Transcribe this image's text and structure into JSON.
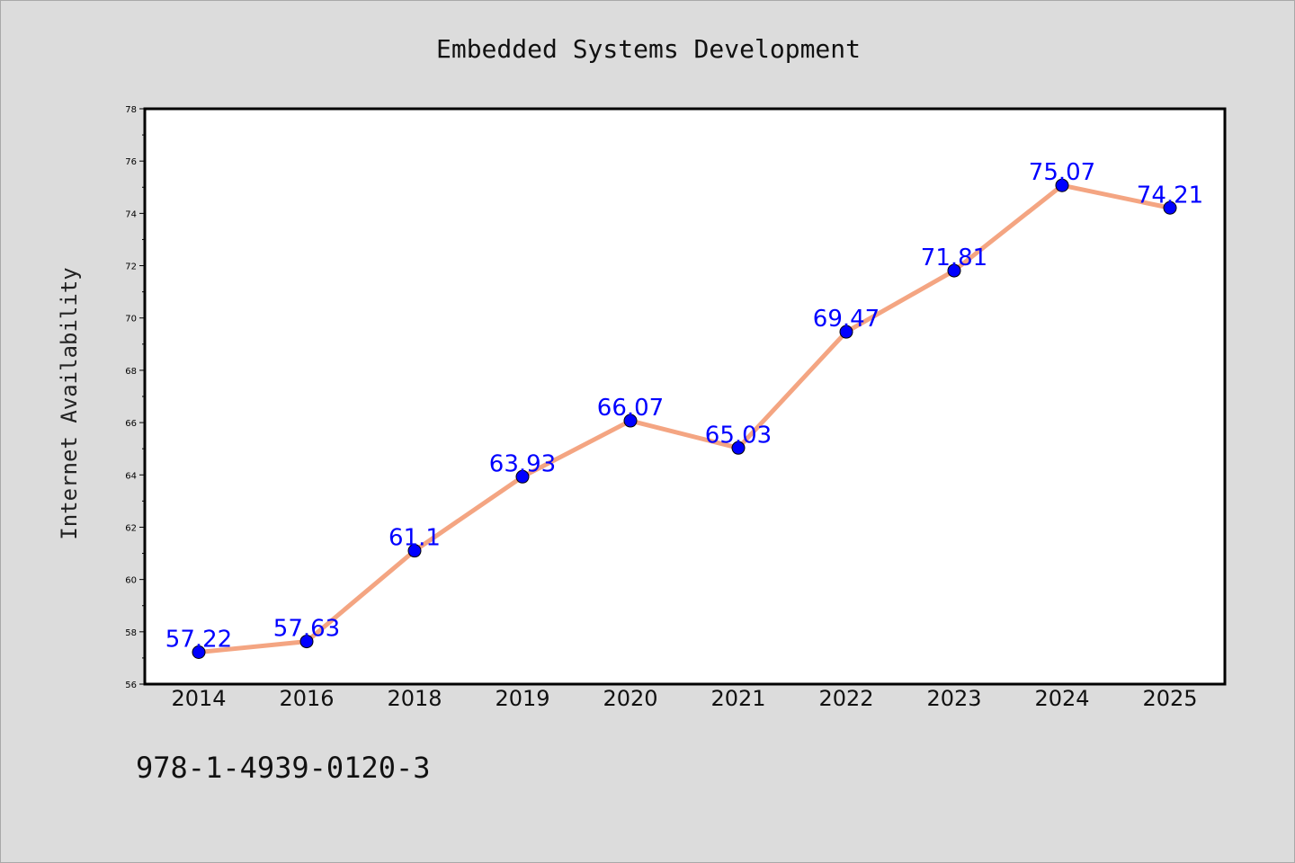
{
  "chart_data": {
    "type": "line",
    "title": "Embedded Systems Development",
    "xlabel": "",
    "ylabel": "Internet Availability",
    "categories": [
      "2014",
      "2016",
      "2018",
      "2019",
      "2020",
      "2021",
      "2022",
      "2023",
      "2024",
      "2025"
    ],
    "series": [
      {
        "values": [
          57.22,
          57.63,
          61.1,
          63.93,
          66.07,
          65.03,
          69.47,
          71.81,
          75.07,
          74.21
        ],
        "data_labels": [
          "57.22",
          "57.63",
          "61.1",
          "63.93",
          "66.07",
          "65.03",
          "69.47",
          "71.81",
          "75.07",
          "74.21"
        ],
        "line_color": "#f4a582",
        "marker_color": "#0000ff"
      }
    ],
    "ylim": [
      56,
      78
    ],
    "yticks": [
      "56",
      "58",
      "60",
      "62",
      "64",
      "66",
      "68",
      "70",
      "72",
      "74",
      "76",
      "78"
    ],
    "grid": false,
    "legend": "none"
  },
  "footer": {
    "isbn": "978-1-4939-0120-3"
  }
}
